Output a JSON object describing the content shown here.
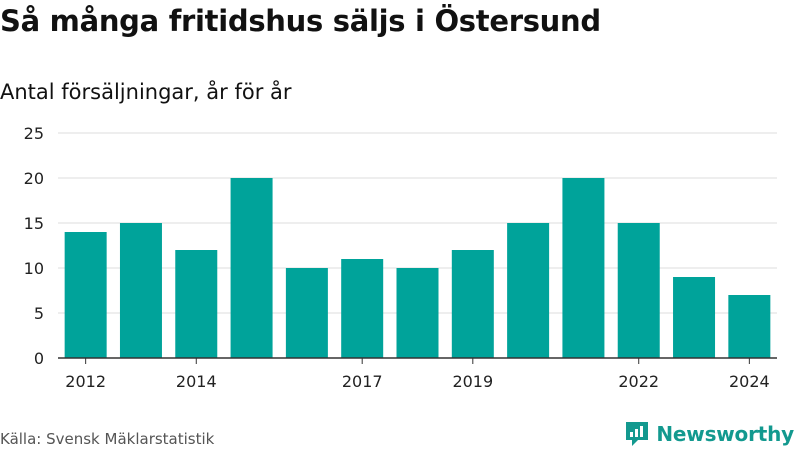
{
  "title": "Så många fritidshus säljs i Östersund",
  "subtitle": "Antal försäljningar, år för år",
  "source": "Källa: Svensk Mäklarstatistik",
  "brand": "Newsworthy",
  "brand_icon": "newsworthy-logo-icon",
  "colors": {
    "bar": "#00a39a",
    "brand": "#13998f",
    "grid": "#dcdcdc",
    "axis": "#333333"
  },
  "chart_data": {
    "type": "bar",
    "categories": [
      "2012",
      "2013",
      "2014",
      "2015",
      "2016",
      "2017",
      "2018",
      "2019",
      "2020",
      "2021",
      "2022",
      "2023",
      "2024"
    ],
    "values": [
      14,
      15,
      12,
      20,
      10,
      11,
      10,
      12,
      15,
      20,
      15,
      9,
      7
    ],
    "x_tick_labels": [
      "2012",
      "2014",
      "2017",
      "2019",
      "2022",
      "2024"
    ],
    "y_ticks": [
      0,
      5,
      10,
      15,
      20,
      25
    ],
    "ylim": [
      0,
      25
    ],
    "grid": true,
    "xlabel": "",
    "ylabel": ""
  }
}
